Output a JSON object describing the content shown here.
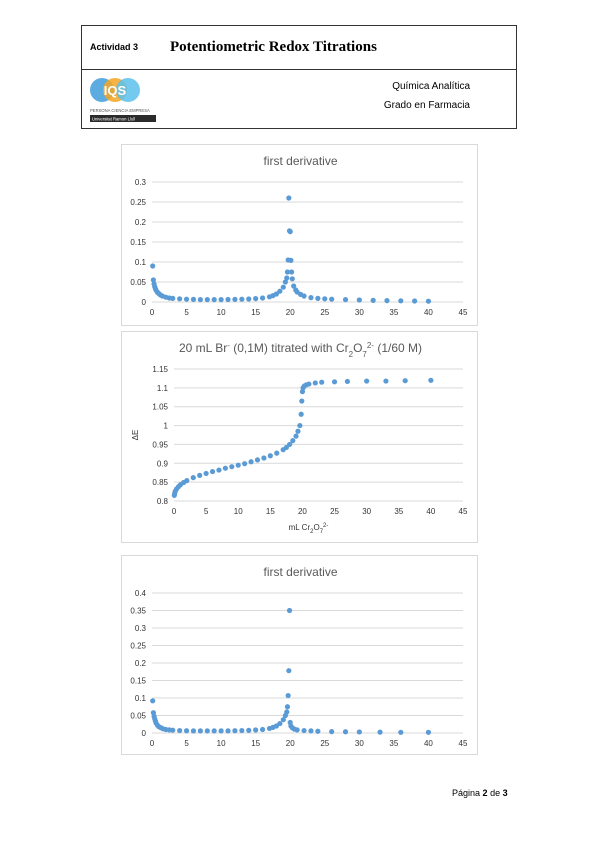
{
  "header": {
    "activity": "Actividad 3",
    "title": "Potentiometric Redox Titrations",
    "subject": "Química Analítica",
    "degree": "Grado en Farmacia",
    "logo": {
      "text": "IQS",
      "tagline": "PERSONA CIENCIA EMPRESA",
      "university": "Universitat Ramon Llull",
      "colors": [
        "#4aa3df",
        "#f5a623",
        "#5bc0eb"
      ]
    }
  },
  "footer": {
    "prefix": "Página",
    "page": "2",
    "of": "de",
    "total": "3"
  },
  "colors": {
    "series": "#5b9bd5",
    "grid": "#d9d9d9",
    "axis_text": "#595959"
  },
  "chart_data": [
    {
      "type": "scatter",
      "title": "first derivative",
      "xlim": [
        0,
        45
      ],
      "ylim": [
        0,
        0.3
      ],
      "xticks": [
        0,
        5,
        10,
        15,
        20,
        25,
        30,
        35,
        40,
        45
      ],
      "yticks": [
        0,
        0.05,
        0.1,
        0.15,
        0.2,
        0.25,
        0.3
      ],
      "ytick_labels": [
        "0",
        "0.05",
        "0.1",
        "0.15",
        "0.2",
        "0.25",
        "0.3"
      ],
      "xlabel": "",
      "ylabel": "",
      "grid": "horizontal",
      "points": [
        [
          0.1,
          0.09
        ],
        [
          0.2,
          0.055
        ],
        [
          0.3,
          0.045
        ],
        [
          0.4,
          0.038
        ],
        [
          0.5,
          0.033
        ],
        [
          0.6,
          0.029
        ],
        [
          0.8,
          0.024
        ],
        [
          1.0,
          0.021
        ],
        [
          1.2,
          0.018
        ],
        [
          1.5,
          0.015
        ],
        [
          2,
          0.012
        ],
        [
          2.5,
          0.01
        ],
        [
          3,
          0.009
        ],
        [
          4,
          0.008
        ],
        [
          5,
          0.007
        ],
        [
          6,
          0.0065
        ],
        [
          7,
          0.006
        ],
        [
          8,
          0.006
        ],
        [
          9,
          0.006
        ],
        [
          10,
          0.006
        ],
        [
          11,
          0.0062
        ],
        [
          12,
          0.0065
        ],
        [
          13,
          0.007
        ],
        [
          14,
          0.0075
        ],
        [
          15,
          0.0085
        ],
        [
          16,
          0.01
        ],
        [
          17,
          0.013
        ],
        [
          17.5,
          0.016
        ],
        [
          18,
          0.02
        ],
        [
          18.5,
          0.027
        ],
        [
          19,
          0.037
        ],
        [
          19.3,
          0.05
        ],
        [
          19.5,
          0.06
        ],
        [
          19.6,
          0.075
        ],
        [
          19.7,
          0.105
        ],
        [
          19.8,
          0.26
        ],
        [
          19.9,
          0.178
        ],
        [
          20.0,
          0.176
        ],
        [
          20.1,
          0.104
        ],
        [
          20.2,
          0.075
        ],
        [
          20.3,
          0.058
        ],
        [
          20.5,
          0.04
        ],
        [
          20.8,
          0.03
        ],
        [
          21,
          0.025
        ],
        [
          21.5,
          0.019
        ],
        [
          22,
          0.015
        ],
        [
          23,
          0.011
        ],
        [
          24,
          0.009
        ],
        [
          25,
          0.008
        ],
        [
          26,
          0.007
        ],
        [
          28,
          0.006
        ],
        [
          30,
          0.005
        ],
        [
          32,
          0.004
        ],
        [
          34,
          0.0035
        ],
        [
          36,
          0.003
        ],
        [
          38,
          0.0025
        ],
        [
          40,
          0.002
        ]
      ]
    },
    {
      "type": "scatter",
      "title_parts": [
        "20 mL Br",
        "-",
        " (0,1M) titrated with Cr",
        "2",
        "O",
        "7",
        "2-",
        " (1/60 M)"
      ],
      "xlim": [
        0,
        45
      ],
      "ylim": [
        0.8,
        1.15
      ],
      "xticks": [
        0,
        5,
        10,
        15,
        20,
        25,
        30,
        35,
        40,
        45
      ],
      "yticks": [
        0.8,
        0.85,
        0.9,
        0.95,
        1.0,
        1.05,
        1.1,
        1.15
      ],
      "ytick_labels": [
        "0.8",
        "0.85",
        "0.9",
        "0.95",
        "1",
        "1.05",
        "1.1",
        "1.15"
      ],
      "xlabel_parts": [
        "mL Cr",
        "2",
        "O",
        "7",
        "2-"
      ],
      "ylabel": "ΔE",
      "grid": "horizontal",
      "points": [
        [
          0.05,
          0.815
        ],
        [
          0.1,
          0.82
        ],
        [
          0.2,
          0.826
        ],
        [
          0.4,
          0.832
        ],
        [
          0.7,
          0.838
        ],
        [
          1,
          0.843
        ],
        [
          1.5,
          0.849
        ],
        [
          2,
          0.854
        ],
        [
          3,
          0.862
        ],
        [
          4,
          0.868
        ],
        [
          5,
          0.873
        ],
        [
          6,
          0.878
        ],
        [
          7,
          0.882
        ],
        [
          8,
          0.887
        ],
        [
          9,
          0.891
        ],
        [
          10,
          0.895
        ],
        [
          11,
          0.899
        ],
        [
          12,
          0.904
        ],
        [
          13,
          0.909
        ],
        [
          14,
          0.914
        ],
        [
          15,
          0.92
        ],
        [
          16,
          0.927
        ],
        [
          17,
          0.936
        ],
        [
          17.5,
          0.942
        ],
        [
          18,
          0.95
        ],
        [
          18.5,
          0.96
        ],
        [
          19,
          0.972
        ],
        [
          19.3,
          0.985
        ],
        [
          19.6,
          1.0
        ],
        [
          19.8,
          1.03
        ],
        [
          19.9,
          1.065
        ],
        [
          20,
          1.09
        ],
        [
          20.1,
          1.1
        ],
        [
          20.3,
          1.105
        ],
        [
          20.6,
          1.108
        ],
        [
          21,
          1.11
        ],
        [
          22,
          1.113
        ],
        [
          23,
          1.115
        ],
        [
          25,
          1.116
        ],
        [
          27,
          1.117
        ],
        [
          30,
          1.118
        ],
        [
          33,
          1.118
        ],
        [
          36,
          1.119
        ],
        [
          40,
          1.12
        ]
      ]
    },
    {
      "type": "scatter",
      "title": "first derivative",
      "xlim": [
        0,
        45
      ],
      "ylim": [
        0,
        0.4
      ],
      "xticks": [
        0,
        5,
        10,
        15,
        20,
        25,
        30,
        35,
        40,
        45
      ],
      "yticks": [
        0,
        0.05,
        0.1,
        0.15,
        0.2,
        0.25,
        0.3,
        0.35,
        0.4
      ],
      "ytick_labels": [
        "0",
        "0.05",
        "0.1",
        "0.15",
        "0.2",
        "0.25",
        "0.3",
        "0.35",
        "0.4"
      ],
      "xlabel": "",
      "ylabel": "",
      "grid": "horizontal",
      "points": [
        [
          0.1,
          0.092
        ],
        [
          0.2,
          0.058
        ],
        [
          0.3,
          0.048
        ],
        [
          0.4,
          0.04
        ],
        [
          0.5,
          0.034
        ],
        [
          0.6,
          0.028
        ],
        [
          0.8,
          0.022
        ],
        [
          1.0,
          0.018
        ],
        [
          1.3,
          0.015
        ],
        [
          1.6,
          0.012
        ],
        [
          2,
          0.01
        ],
        [
          2.5,
          0.009
        ],
        [
          3,
          0.008
        ],
        [
          4,
          0.007
        ],
        [
          5,
          0.0065
        ],
        [
          6,
          0.006
        ],
        [
          7,
          0.006
        ],
        [
          8,
          0.006
        ],
        [
          9,
          0.006
        ],
        [
          10,
          0.006
        ],
        [
          11,
          0.006
        ],
        [
          12,
          0.0065
        ],
        [
          13,
          0.007
        ],
        [
          14,
          0.0075
        ],
        [
          15,
          0.0085
        ],
        [
          16,
          0.01
        ],
        [
          17,
          0.013
        ],
        [
          17.5,
          0.016
        ],
        [
          18,
          0.02
        ],
        [
          18.5,
          0.027
        ],
        [
          19,
          0.038
        ],
        [
          19.3,
          0.05
        ],
        [
          19.5,
          0.06
        ],
        [
          19.6,
          0.075
        ],
        [
          19.7,
          0.107
        ],
        [
          19.8,
          0.178
        ],
        [
          19.9,
          0.35
        ],
        [
          20.0,
          0.03
        ],
        [
          20.1,
          0.02
        ],
        [
          20.3,
          0.015
        ],
        [
          20.6,
          0.011
        ],
        [
          21,
          0.009
        ],
        [
          22,
          0.007
        ],
        [
          23,
          0.006
        ],
        [
          24,
          0.005
        ],
        [
          26,
          0.004
        ],
        [
          28,
          0.0035
        ],
        [
          30,
          0.003
        ],
        [
          33,
          0.0025
        ],
        [
          36,
          0.002
        ],
        [
          40,
          0.002
        ]
      ]
    }
  ]
}
